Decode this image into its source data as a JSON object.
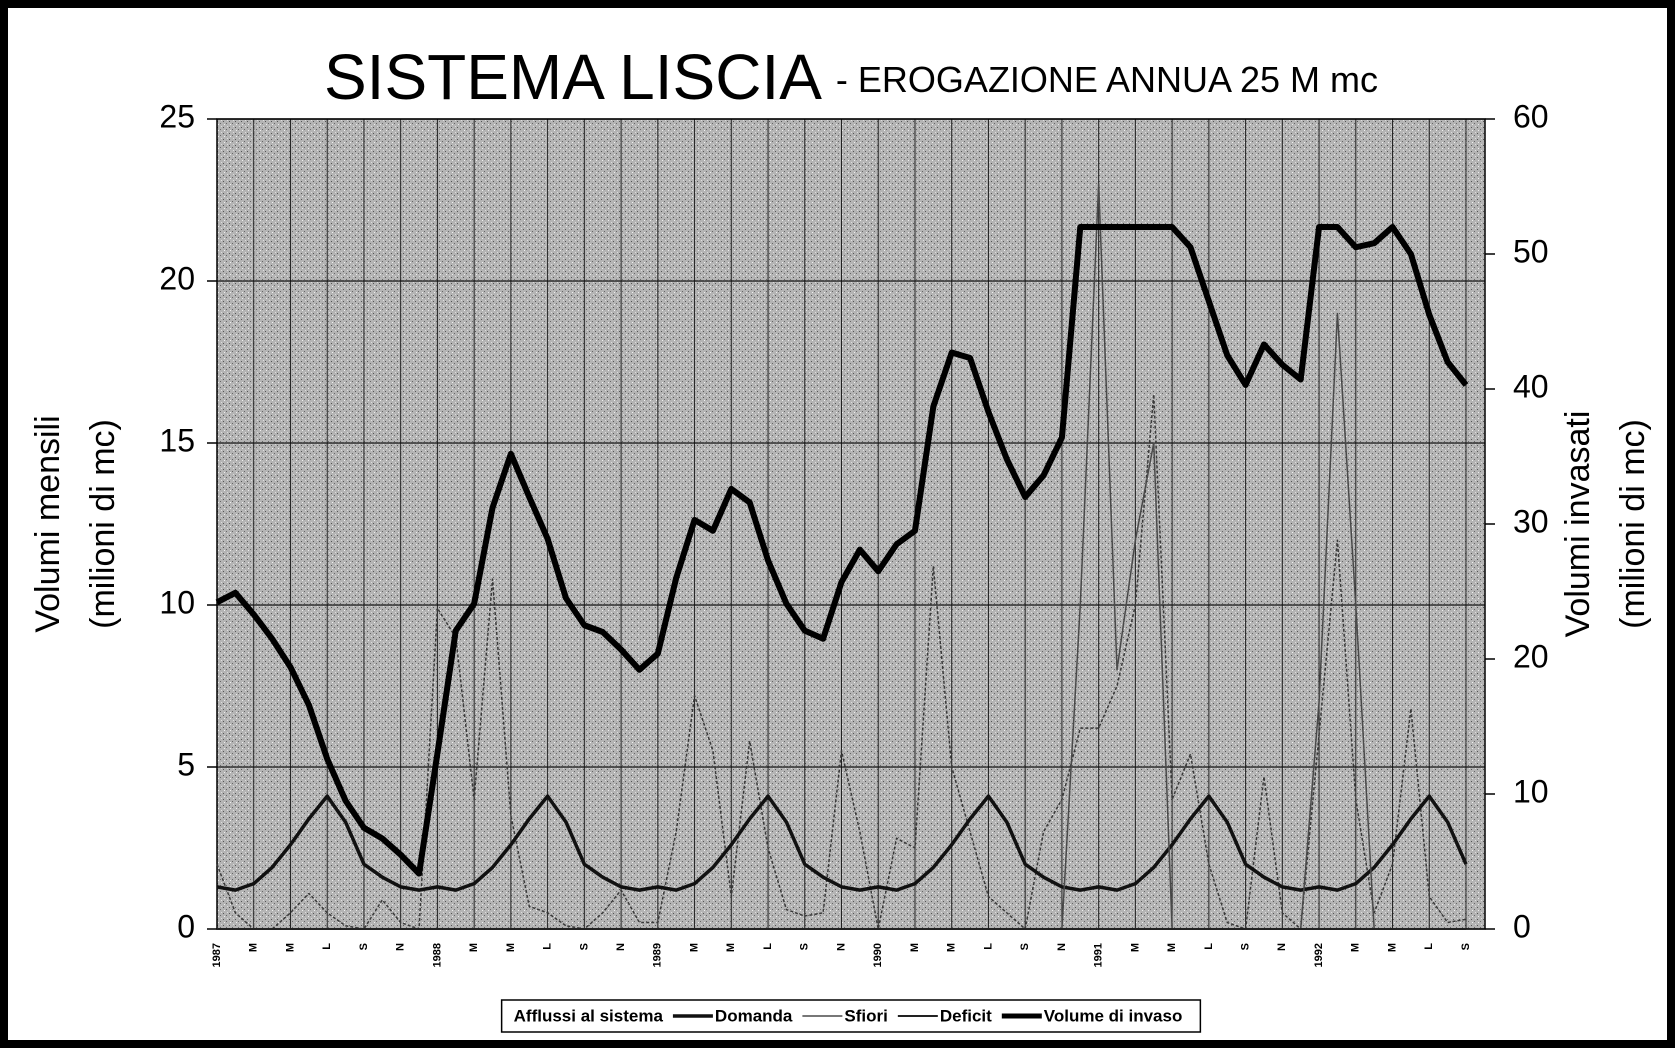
{
  "chart_data": {
    "type": "line",
    "title": "SISTEMA LISCIA",
    "subtitle": "- EROGAZIONE ANNUA 25 M mc",
    "ylabel": [
      "Volumi mensili",
      "(milioni di mc)"
    ],
    "y2label": [
      "Volumi invasati",
      "(milioni di mc)"
    ],
    "categories": [
      "1987",
      null,
      "M",
      null,
      "M",
      null,
      "L",
      null,
      "S",
      null,
      "N",
      null,
      "1988",
      null,
      "M",
      null,
      "M",
      null,
      "L",
      null,
      "S",
      null,
      "N",
      null,
      "1989",
      null,
      "M",
      null,
      "M",
      null,
      "L",
      null,
      "S",
      null,
      "N",
      null,
      "1990",
      null,
      "M",
      null,
      "M",
      null,
      "L",
      null,
      "S",
      null,
      "N",
      null,
      "1991",
      null,
      "M",
      null,
      "M",
      null,
      "L",
      null,
      "S",
      null,
      "N",
      null,
      "1992",
      null,
      "M",
      null,
      "M",
      null,
      "L",
      null,
      "S"
    ],
    "ylim": [
      0,
      25
    ],
    "yticks": [
      0,
      5,
      10,
      15,
      20,
      25
    ],
    "y2lim": [
      0,
      60
    ],
    "y2ticks": [
      0,
      10,
      20,
      30,
      40,
      50,
      60
    ],
    "grid": true,
    "legend": "bottom",
    "series": [
      {
        "name": "Afflussi al sistema",
        "color": "#3a3a3a",
        "width": 1.5,
        "dash": "3,2",
        "values": [
          2,
          0.5,
          0,
          0,
          0.5,
          1.1,
          0.5,
          0.1,
          0,
          0.9,
          0.2,
          0,
          9.9,
          9,
          4,
          10.8,
          3.5,
          0.7,
          0.5,
          0.1,
          0,
          0.5,
          1.2,
          0.2,
          0.2,
          3,
          7.2,
          5.5,
          1,
          5.8,
          2.5,
          0.6,
          0.4,
          0.5,
          5.5,
          3,
          0,
          2.8,
          2.5,
          11.2,
          5,
          3,
          1,
          0.5,
          0,
          3,
          4,
          6.2,
          6.2,
          7.5,
          10,
          16.5,
          4,
          5.4,
          2,
          0.2,
          0,
          4.7,
          0.5,
          0,
          6,
          12,
          4,
          0.5,
          2,
          6.8,
          1,
          0.2,
          0.3
        ]
      },
      {
        "name": "Domanda",
        "color": "#111111",
        "width": 3.5,
        "values": [
          1.3,
          1.2,
          1.4,
          1.9,
          2.6,
          3.4,
          4.1,
          3.3,
          2.0,
          1.6,
          1.3,
          1.2,
          1.3,
          1.2,
          1.4,
          1.9,
          2.6,
          3.4,
          4.1,
          3.3,
          2.0,
          1.6,
          1.3,
          1.2,
          1.3,
          1.2,
          1.4,
          1.9,
          2.6,
          3.4,
          4.1,
          3.3,
          2.0,
          1.6,
          1.3,
          1.2,
          1.3,
          1.2,
          1.4,
          1.9,
          2.6,
          3.4,
          4.1,
          3.3,
          2.0,
          1.6,
          1.3,
          1.2,
          1.3,
          1.2,
          1.4,
          1.9,
          2.6,
          3.4,
          4.1,
          3.3,
          2.0,
          1.6,
          1.3,
          1.2,
          1.3,
          1.2,
          1.4,
          1.9,
          2.6,
          3.4,
          4.1,
          3.3,
          2.0
        ]
      },
      {
        "name": "Sfiori",
        "color": "#4a4a4a",
        "width": 1.5,
        "values": [
          0,
          0,
          0,
          0,
          0,
          0,
          0,
          0,
          0,
          0,
          0,
          0,
          0,
          0,
          0,
          0,
          0,
          0,
          0,
          0,
          0,
          0,
          0,
          0,
          0,
          0,
          0,
          0,
          0,
          0,
          0,
          0,
          0,
          0,
          0,
          0,
          0,
          0,
          0,
          0,
          0,
          0,
          0,
          0,
          0,
          0,
          0,
          10,
          23,
          8,
          12,
          15,
          0,
          0,
          0,
          0,
          0,
          0,
          0,
          0,
          7,
          19,
          10,
          0,
          0,
          0,
          0,
          0,
          0
        ]
      },
      {
        "name": "Deficit",
        "color": "#222222",
        "width": 2,
        "values": [
          0,
          0,
          0,
          0,
          0,
          0,
          0,
          0,
          0,
          0,
          0,
          0,
          0,
          0,
          0,
          0,
          0,
          0,
          0,
          0,
          0,
          0,
          0,
          0,
          0,
          0,
          0,
          0,
          0,
          0,
          0,
          0,
          0,
          0,
          0,
          0,
          0,
          0,
          0,
          0,
          0,
          0,
          0,
          0,
          0,
          0,
          0,
          0,
          0,
          0,
          0,
          0,
          0,
          0,
          0,
          0,
          0,
          0,
          0,
          0,
          0,
          0,
          0,
          0,
          0,
          0,
          0,
          0,
          0
        ]
      },
      {
        "name": "Volume di invaso",
        "color": "#000000",
        "width": 6,
        "axis": "y2",
        "values": [
          24.2,
          24.9,
          23.3,
          21.5,
          19.4,
          16.6,
          12.6,
          9.5,
          7.5,
          6.7,
          5.5,
          4.1,
          13,
          22.1,
          24.1,
          31.2,
          35.2,
          32,
          28.9,
          24.5,
          22.5,
          22,
          20.7,
          19.2,
          20.4,
          26,
          30.3,
          29.5,
          32.6,
          31.6,
          27.3,
          24.1,
          22.1,
          21.5,
          25.7,
          28.1,
          26.5,
          28.5,
          29.5,
          38.7,
          42.7,
          42.3,
          38.3,
          34.8,
          32,
          33.6,
          36.4,
          52,
          52,
          52,
          52,
          52,
          52,
          50.5,
          46.5,
          42.5,
          40.3,
          43.3,
          41.8,
          40.7,
          52,
          52,
          50.5,
          50.8,
          52,
          50,
          45.5,
          42,
          40.3
        ]
      }
    ]
  }
}
